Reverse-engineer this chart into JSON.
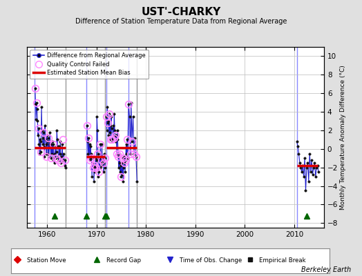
{
  "title": "UST'-CHARKY",
  "subtitle": "Difference of Station Temperature Data from Regional Average",
  "ylabel_right": "Monthly Temperature Anomaly Difference (°C)",
  "credit": "Berkeley Earth",
  "xlim": [
    1956,
    2016
  ],
  "ylim": [
    -8.5,
    11
  ],
  "yticks": [
    -8,
    -6,
    -4,
    -2,
    0,
    2,
    4,
    6,
    8,
    10
  ],
  "xticks": [
    1960,
    1970,
    1980,
    1990,
    2000,
    2010
  ],
  "bg_color": "#e0e0e0",
  "plot_bg_color": "#ffffff",
  "grid_color": "#bbbbbb",
  "line_color": "#2222cc",
  "dot_color": "#111111",
  "qc_color": "#ff88ff",
  "bias_color": "#dd0000",
  "segment1": {
    "x_start": 1957.5,
    "x_end": 1963.8,
    "bias": 0.15,
    "data_x": [
      1957.6,
      1957.7,
      1957.8,
      1957.9,
      1958.0,
      1958.1,
      1958.2,
      1958.3,
      1958.4,
      1958.5,
      1958.6,
      1958.7,
      1958.8,
      1958.9,
      1959.0,
      1959.1,
      1959.2,
      1959.3,
      1959.4,
      1959.5,
      1959.6,
      1959.7,
      1959.8,
      1959.9,
      1960.0,
      1960.1,
      1960.2,
      1960.3,
      1960.4,
      1960.5,
      1960.6,
      1960.7,
      1960.8,
      1960.9,
      1961.0,
      1961.1,
      1961.2,
      1961.3,
      1961.4,
      1961.5,
      1961.6,
      1961.7,
      1961.8,
      1961.9,
      1962.0,
      1962.1,
      1962.2,
      1962.3,
      1962.4,
      1962.5,
      1962.6,
      1962.7,
      1962.8,
      1963.0,
      1963.1,
      1963.2,
      1963.4,
      1963.6,
      1963.7,
      1963.8
    ],
    "data_y": [
      6.5,
      4.8,
      3.2,
      5.0,
      4.3,
      3.0,
      1.5,
      2.2,
      0.5,
      -0.5,
      1.0,
      -0.3,
      0.8,
      4.5,
      2.0,
      1.2,
      0.5,
      1.8,
      0.2,
      -0.8,
      2.5,
      1.0,
      0.5,
      -0.5,
      1.5,
      0.8,
      -0.5,
      1.2,
      -0.8,
      0.5,
      1.8,
      0.2,
      -1.0,
      0.5,
      -0.5,
      0.8,
      -1.2,
      0.5,
      -0.8,
      -1.5,
      -0.5,
      0.2,
      -1.0,
      -0.3,
      2.0,
      1.0,
      0.3,
      -0.8,
      -1.2,
      0.3,
      -0.5,
      0.8,
      -1.5,
      -0.8,
      0.5,
      -1.2,
      -0.5,
      -1.8,
      -1.2,
      -2.0
    ],
    "qc_x": [
      1957.6,
      1957.9,
      1958.3,
      1958.8,
      1959.3,
      1959.8,
      1960.3,
      1960.8,
      1961.3,
      1961.8,
      1962.3,
      1962.8,
      1963.2,
      1963.7
    ],
    "qc_y": [
      6.5,
      5.0,
      2.2,
      -0.3,
      1.8,
      -0.8,
      1.2,
      -1.0,
      0.5,
      -1.0,
      -1.2,
      -1.5,
      1.0,
      -1.2
    ]
  },
  "segment2a": {
    "x_start": 1968.0,
    "x_end": 1971.8,
    "bias": -0.8,
    "data_x": [
      1968.1,
      1968.2,
      1968.3,
      1968.4,
      1968.5,
      1968.6,
      1968.7,
      1968.8,
      1968.9,
      1969.0,
      1969.1,
      1969.2,
      1969.3,
      1969.4,
      1969.5,
      1969.6,
      1969.7,
      1969.8,
      1969.9,
      1970.0,
      1970.1,
      1970.2,
      1970.3,
      1970.4,
      1970.5,
      1970.6,
      1970.7,
      1970.8,
      1970.9,
      1971.0,
      1971.1,
      1971.2,
      1971.3,
      1971.4,
      1971.5,
      1971.6,
      1971.7,
      1971.8
    ],
    "data_y": [
      2.5,
      0.8,
      -0.5,
      1.2,
      -0.8,
      0.5,
      -1.2,
      0.3,
      -0.5,
      -1.0,
      -3.0,
      -1.5,
      -2.0,
      -0.8,
      -3.5,
      -1.8,
      -2.5,
      -1.0,
      -2.0,
      -1.2,
      3.5,
      2.0,
      -0.5,
      -3.0,
      -2.5,
      -1.0,
      -2.0,
      0.5,
      -1.5,
      -1.8,
      0.5,
      -1.2,
      -0.8,
      -1.5,
      -2.5,
      -0.5,
      -1.0,
      -2.0
    ],
    "qc_x": [
      1968.1,
      1968.4,
      1968.7,
      1969.0,
      1969.3,
      1969.6,
      1969.9,
      1970.2,
      1970.5,
      1970.8,
      1971.1,
      1971.4,
      1971.7
    ],
    "qc_y": [
      2.5,
      1.2,
      -1.2,
      -1.0,
      -2.0,
      -1.8,
      -2.0,
      -0.5,
      -2.5,
      0.5,
      -1.2,
      -1.5,
      -1.0
    ]
  },
  "segment2b": {
    "x_start": 1972.0,
    "x_end": 1978.2,
    "bias": 0.1,
    "data_x": [
      1972.0,
      1972.1,
      1972.2,
      1972.3,
      1972.4,
      1972.5,
      1972.6,
      1972.7,
      1972.8,
      1972.9,
      1973.0,
      1973.1,
      1973.2,
      1973.3,
      1973.4,
      1973.5,
      1973.6,
      1973.7,
      1973.8,
      1973.9,
      1974.0,
      1974.1,
      1974.2,
      1974.3,
      1974.4,
      1974.5,
      1974.6,
      1974.7,
      1974.8,
      1974.9,
      1975.0,
      1975.1,
      1975.2,
      1975.3,
      1975.4,
      1975.5,
      1975.6,
      1975.7,
      1975.8,
      1975.9,
      1976.0,
      1976.1,
      1976.2,
      1976.3,
      1976.5,
      1976.7,
      1976.9,
      1977.0,
      1977.2,
      1977.4,
      1977.6,
      1977.8,
      1978.0,
      1978.2
    ],
    "data_y": [
      3.5,
      2.0,
      4.5,
      2.8,
      3.0,
      1.5,
      3.8,
      1.8,
      2.5,
      1.0,
      3.5,
      2.2,
      1.0,
      0.8,
      2.5,
      1.2,
      3.8,
      2.0,
      1.5,
      0.8,
      1.5,
      -0.5,
      2.0,
      1.0,
      -0.8,
      -2.0,
      -1.5,
      -0.5,
      -2.5,
      -1.8,
      -3.0,
      -1.5,
      -2.8,
      -1.0,
      -3.5,
      -2.0,
      -1.5,
      -0.8,
      -2.5,
      -1.2,
      0.5,
      -0.5,
      1.0,
      -1.0,
      4.8,
      3.5,
      -0.5,
      5.0,
      0.8,
      3.5,
      -0.5,
      1.2,
      -0.8,
      -3.5
    ],
    "qc_x": [
      1972.0,
      1972.3,
      1972.6,
      1972.9,
      1973.2,
      1973.5,
      1973.8,
      1974.1,
      1974.4,
      1974.7,
      1975.0,
      1975.3,
      1975.6,
      1975.9,
      1976.2,
      1976.5,
      1976.9,
      1977.2,
      1977.6,
      1978.0
    ],
    "qc_y": [
      3.5,
      2.8,
      3.8,
      1.0,
      1.0,
      1.2,
      1.5,
      -0.5,
      -0.8,
      -0.5,
      -3.0,
      -1.0,
      -1.5,
      -1.2,
      1.0,
      4.8,
      -0.5,
      0.8,
      -0.5,
      -0.8
    ]
  },
  "segment3": {
    "x_start": 2010.5,
    "x_end": 2014.8,
    "bias": -1.8,
    "data_x": [
      2010.5,
      2010.7,
      2010.9,
      2011.1,
      2011.3,
      2011.5,
      2011.7,
      2011.9,
      2012.1,
      2012.3,
      2012.5,
      2012.7,
      2012.9,
      2013.1,
      2013.3,
      2013.5,
      2013.7,
      2013.9,
      2014.1,
      2014.3,
      2014.5,
      2014.7,
      2014.9
    ],
    "data_y": [
      0.8,
      0.3,
      -0.5,
      -1.5,
      -2.0,
      -2.5,
      -1.8,
      -3.0,
      -1.0,
      -4.5,
      -2.0,
      -1.5,
      -3.5,
      -0.5,
      -2.5,
      -1.2,
      -2.8,
      -2.0,
      -1.5,
      -3.0,
      -2.0,
      -1.8,
      -2.5
    ],
    "qc_x": [],
    "qc_y": []
  },
  "vlines_blue": [
    1957.5,
    1968.0,
    1972.0,
    1976.5,
    2010.5
  ],
  "vlines_gray": [
    1963.8,
    1971.8,
    1978.2
  ],
  "record_gap_x": [
    1961.5,
    1968.0,
    1971.8,
    1972.0,
    2012.5
  ],
  "station_move_x": [],
  "time_obs_x": [],
  "empirical_break_x": []
}
